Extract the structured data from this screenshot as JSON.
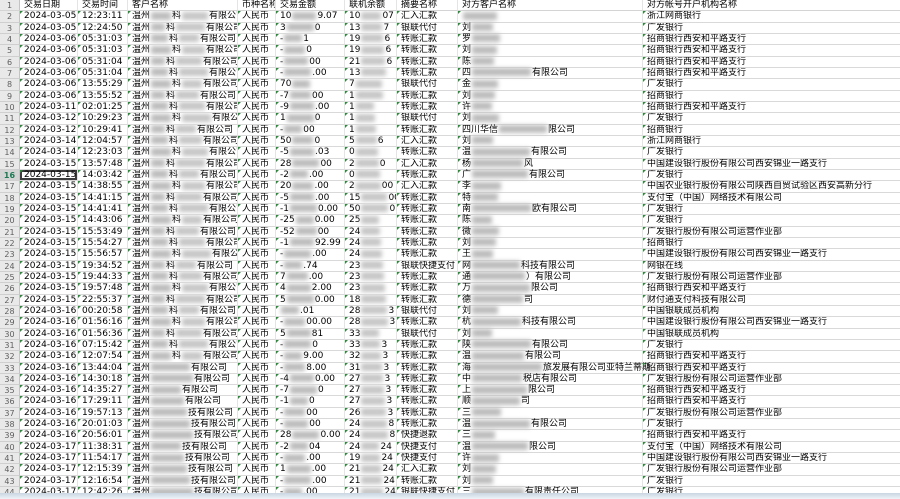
{
  "sheet": {
    "headers": [
      "交易日期",
      "交易时间",
      "客户名称",
      "币种名称",
      "交易金额",
      "联机余额",
      "摘要名称",
      "对方客户名称",
      "对方帐号开户机构名称"
    ],
    "customer_prefix": "温州",
    "currency": "人民币",
    "selected_cell": "A16",
    "rows": [
      {
        "n": 2,
        "d": "2024-03-05",
        "t": "12:23:11",
        "cm": "科",
        "cs": "有限公司",
        "al": "10",
        "ar": "9.07",
        "ol": "10",
        "or": "07",
        "sm": "汇入汇款",
        "cl": "",
        "cr": "",
        "bk": "浙江网商银行"
      },
      {
        "n": 3,
        "d": "2024-03-05",
        "t": "12:24:50",
        "cm": "科",
        "cs": "有限公司",
        "al": "3",
        "ar": "0",
        "ol": "13",
        "or": "7",
        "sm": "银联代付",
        "cl": "刘",
        "cr": "",
        "bk": "广发银行"
      },
      {
        "n": 4,
        "d": "2024-03-06",
        "t": "05:31:03",
        "cm": "科",
        "cs": "有限公司",
        "al": "-",
        "ar": "1",
        "ol": "19",
        "or": "6",
        "sm": "转账汇款",
        "cl": "罗",
        "cr": "",
        "bk": "招商银行西安和平路支行"
      },
      {
        "n": 5,
        "d": "2024-03-06",
        "t": "05:31:03",
        "cm": "科",
        "cs": "有限公司",
        "al": "-",
        "ar": "0",
        "ol": "19",
        "or": "6",
        "sm": "转账汇款",
        "cl": "刘",
        "cr": "",
        "bk": "招商银行西安和平路支行"
      },
      {
        "n": 6,
        "d": "2024-03-06",
        "t": "05:31:04",
        "cm": "科",
        "cs": "有限公司",
        "al": "-",
        "ar": "00",
        "ol": "21",
        "or": "6",
        "sm": "转账汇款",
        "cl": "陈",
        "cr": "",
        "bk": "招商银行西安和平路支行"
      },
      {
        "n": 7,
        "d": "2024-03-06",
        "t": "05:31:04",
        "cm": "科",
        "cs": "有限公司",
        "al": "-",
        "ar": ".00",
        "ol": "13",
        "or": "",
        "sm": "转账汇款",
        "cl": "四",
        "cr": "有限公司",
        "bk": "招商银行西安和平路支行"
      },
      {
        "n": 8,
        "d": "2024-03-06",
        "t": "13:55:29",
        "cm": "科",
        "cs": "有限公司",
        "al": "70",
        "ar": "",
        "ol": "7",
        "or": "",
        "sm": "银联代付",
        "cl": "金",
        "cr": "",
        "bk": "广发银行"
      },
      {
        "n": 9,
        "d": "2024-03-06",
        "t": "13:55:52",
        "cm": "科",
        "cs": "有限公司",
        "al": "-7",
        "ar": "00",
        "ol": "1",
        "or": "",
        "sm": "转账汇款",
        "cl": "刘",
        "cr": "",
        "bk": "招商银行"
      },
      {
        "n": 10,
        "d": "2024-03-11",
        "t": "02:01:25",
        "cm": "科",
        "cs": "有限公司",
        "al": "-9",
        "ar": ".00",
        "ol": "1",
        "or": "",
        "sm": "转账汇款",
        "cl": "许",
        "cr": "",
        "bk": "招商银行西安和平路支行"
      },
      {
        "n": 11,
        "d": "2024-03-12",
        "t": "10:29:23",
        "cm": "科",
        "cs": "有限公司",
        "al": "1",
        "ar": "0",
        "ol": "1",
        "or": "",
        "sm": "银联代付",
        "cl": "刘",
        "cr": "",
        "bk": "广发银行"
      },
      {
        "n": 12,
        "d": "2024-03-12",
        "t": "10:29:41",
        "cm": "科",
        "cs": "有限公司",
        "al": "-",
        "ar": "00",
        "ol": "1",
        "or": "",
        "sm": "转账汇款",
        "cl": "四川华信",
        "cr": "限公司",
        "bk": "招商银行"
      },
      {
        "n": 13,
        "d": "2024-03-14",
        "t": "12:04:57",
        "cm": "科",
        "cs": "有限公司",
        "al": "50",
        "ar": "0",
        "ol": "5",
        "or": "6",
        "sm": "汇入汇款",
        "cl": "刘",
        "cr": "",
        "bk": "浙江网商银行"
      },
      {
        "n": 14,
        "d": "2024-03-14",
        "t": "12:23:03",
        "cm": "科",
        "cs": "有限公司",
        "al": "-5",
        "ar": ".03",
        "ol": "0",
        "or": "",
        "sm": "转账汇款",
        "cl": "温",
        "cr": "有限公司",
        "bk": "广发银行"
      },
      {
        "n": 15,
        "d": "2024-03-15",
        "t": "13:57:48",
        "cm": "科",
        "cs": "有限公司",
        "al": "28",
        "ar": "00",
        "ol": "2",
        "or": "0",
        "sm": "汇入汇款",
        "cl": "杨",
        "cr": "风",
        "bk": "中国建设银行股份有限公司西安锦业一路支行"
      },
      {
        "n": 16,
        "sel": true,
        "d": "2024-03-15",
        "t": "14:03:42",
        "cm": "科",
        "cs": "有限公司",
        "al": "-2",
        "ar": ".00",
        "ol": "0",
        "or": "",
        "sm": "转账汇款",
        "cl": "广",
        "cr": "有限公司",
        "bk": "广发银行"
      },
      {
        "n": 17,
        "d": "2024-03-15",
        "t": "14:38:55",
        "cm": "科",
        "cs": "有限公司",
        "al": "20",
        "ar": ".00",
        "ol": "2",
        "or": "00",
        "sm": "汇入汇款",
        "cl": "李",
        "cr": "",
        "bk": "中国农业银行股份有限公司陕西自贸试验区西安高新分行"
      },
      {
        "n": 18,
        "d": "2024-03-15",
        "t": "14:41:15",
        "cm": "科",
        "cs": "有限公司",
        "al": "-5",
        "ar": ".00",
        "ol": "15",
        "or": "00",
        "sm": "转账汇款",
        "cl": "特",
        "cr": "",
        "bk": "支付宝（中国）网络技术有限公司"
      },
      {
        "n": 19,
        "d": "2024-03-15",
        "t": "14:41:41",
        "cm": "科",
        "cs": "有限公司",
        "al": "-1",
        "ar": "0.00",
        "ol": "50",
        "or": "0",
        "sm": "转账汇款",
        "cl": "南",
        "cr": "欧有限公司",
        "bk": "广发银行"
      },
      {
        "n": 20,
        "d": "2024-03-15",
        "t": "14:43:06",
        "cm": "科",
        "cs": "有限公司",
        "al": "-25",
        "ar": "0.00",
        "ol": "25",
        "or": "",
        "sm": "转账汇款",
        "cl": "陈",
        "cr": "",
        "bk": "广发银行"
      },
      {
        "n": 21,
        "d": "2024-03-15",
        "t": "15:53:49",
        "cm": "科",
        "cs": "有限公司",
        "al": "-52",
        "ar": "00",
        "ol": "24",
        "or": "",
        "sm": "转账汇款",
        "cl": "微",
        "cr": "",
        "bk": "广发银行股份有限公司运营作业部"
      },
      {
        "n": 22,
        "d": "2024-03-15",
        "t": "15:54:27",
        "cm": "科",
        "cs": "有限公司",
        "al": "-1",
        "ar": "92.99",
        "ol": "24",
        "or": "",
        "sm": "转账汇款",
        "cl": "刘",
        "cr": "",
        "bk": "招商银行"
      },
      {
        "n": 23,
        "d": "2024-03-15",
        "t": "15:56:57",
        "cm": "科",
        "cs": "有限公司",
        "al": "-",
        "ar": ".00",
        "ol": "24",
        "or": "",
        "sm": "转账汇款",
        "cl": "王",
        "cr": "",
        "bk": "中国建设银行股份有限公司西安锦业一路支行"
      },
      {
        "n": 24,
        "d": "2024-03-15",
        "t": "19:34:52",
        "cm": "科",
        "cs": "有限公司",
        "al": "-",
        "ar": ".74",
        "ol": "23",
        "or": "",
        "sm": "银联快捷支付",
        "cl": "网",
        "cr": "科技有限公司",
        "bk": "网银在线"
      },
      {
        "n": 25,
        "d": "2024-03-15",
        "t": "19:44:33",
        "cm": "科",
        "cs": "有限公司",
        "al": "7",
        "ar": ".00",
        "ol": "23",
        "or": "",
        "sm": "转账汇款",
        "cl": "通",
        "cr": "）有限公司",
        "bk": "广发银行股份有限公司运营作业部"
      },
      {
        "n": 26,
        "d": "2024-03-15",
        "t": "19:57:48",
        "cm": "科",
        "cs": "有限公司",
        "al": "4",
        "ar": "2.00",
        "ol": "23",
        "or": "",
        "sm": "转账汇款",
        "cl": "万",
        "cr": "限公司",
        "bk": "招商银行西安和平路支行"
      },
      {
        "n": 27,
        "d": "2024-03-15",
        "t": "22:55:37",
        "cm": "科",
        "cs": "有限公司",
        "al": "5",
        "ar": "0.00",
        "ol": "18",
        "or": "",
        "sm": "转账汇款",
        "cl": "德",
        "cr": "司",
        "bk": "财付通支付科技有限公司"
      },
      {
        "n": 28,
        "d": "2024-03-16",
        "t": "00:20:58",
        "cm": "科",
        "cs": "有限公司",
        "al": "",
        "ar": ".01",
        "ol": "28",
        "or": "3",
        "sm": "银联代付",
        "cl": "刘",
        "cr": "",
        "bk": "中国银联成员机构"
      },
      {
        "n": 29,
        "d": "2024-03-16",
        "t": "01:56:16",
        "cm": "科",
        "cs": "有限公司",
        "al": "-",
        "ar": "00.00",
        "ol": "28",
        "or": "3",
        "sm": "转账汇款",
        "cl": "杭",
        "cr": "科技有限公司",
        "bk": "中国建设银行股份有限公司西安锦业一路支行"
      },
      {
        "n": 30,
        "d": "2024-03-16",
        "t": "01:56:36",
        "cm": "科",
        "cs": "有限公司",
        "al": "5",
        "ar": "81",
        "ol": "33",
        "or": "",
        "sm": "银联代付",
        "cl": "刘",
        "cr": "",
        "bk": "中国银联成员机构"
      },
      {
        "n": 31,
        "d": "2024-03-16",
        "t": "07:15:42",
        "cm": "科",
        "cs": "有限公司",
        "al": "-",
        "ar": "0",
        "ol": "33",
        "or": "3",
        "sm": "转账汇款",
        "cl": "陕",
        "cr": "有限公司",
        "bk": "广发银行"
      },
      {
        "n": 32,
        "d": "2024-03-16",
        "t": "12:07:54",
        "cm": "科",
        "cs": "有限公司",
        "al": "-",
        "ar": "9.00",
        "ol": "32",
        "or": "3",
        "sm": "转账汇款",
        "cl": "温",
        "cr": "有限公司",
        "bk": "招商银行西安和平路支行"
      },
      {
        "n": 33,
        "d": "2024-03-16",
        "t": "13:44:04",
        "cm": "",
        "cs": "有限公司",
        "al": "-",
        "ar": "8.00",
        "ol": "31",
        "or": "3",
        "sm": "转账汇款",
        "cl": "海",
        "cr": "旅发展有限公司亚特兰蒂斯",
        "bk": "招商银行西安和平路支行"
      },
      {
        "n": 34,
        "d": "2024-03-16",
        "t": "14:30:18",
        "cm": "",
        "cs": "有限公司",
        "al": "-4",
        "ar": "0.00",
        "ol": "27",
        "or": "3",
        "sm": "转账汇款",
        "cl": "中",
        "cr": "税店有限公司",
        "bk": "广发银行股份有限公司运营作业部"
      },
      {
        "n": 35,
        "d": "2024-03-16",
        "t": "14:35:27",
        "cm": "",
        "cs": "有限公司",
        "al": "-7",
        "ar": "0",
        "ol": "27",
        "or": "3",
        "sm": "转账汇款",
        "cl": "上",
        "cr": "限公司",
        "bk": "招商银行西安和平路支行"
      },
      {
        "n": 36,
        "d": "2024-03-16",
        "t": "17:29:11",
        "cm": "",
        "cs": "有限公司",
        "al": "-1",
        "ar": "0",
        "ol": "27",
        "or": "3",
        "sm": "转账汇款",
        "cl": "顺",
        "cr": "司",
        "bk": "招商银行西安和平路支行"
      },
      {
        "n": 37,
        "d": "2024-03-16",
        "t": "19:57:13",
        "cm": "",
        "cs": "技有限公司",
        "al": "-",
        "ar": "00",
        "ol": "26",
        "or": "3",
        "sm": "转账汇款",
        "cl": "三",
        "cr": "",
        "bk": "广发银行股份有限公司运营作业部"
      },
      {
        "n": 38,
        "d": "2024-03-16",
        "t": "20:01:03",
        "cm": "",
        "cs": "技有限公司",
        "al": "-",
        "ar": "00",
        "ol": "24",
        "or": "8",
        "sm": "转账汇款",
        "cl": "温",
        "cr": "有限公司",
        "bk": "广发银行"
      },
      {
        "n": 39,
        "d": "2024-03-16",
        "t": "20:56:01",
        "cm": "",
        "cs": "技有限公司",
        "al": "28",
        "ar": "0.00",
        "ol": "24",
        "or": "8",
        "sm": "快捷退款",
        "cl": "三",
        "cr": "",
        "bk": "招商银行西安和平路支行"
      },
      {
        "n": 40,
        "d": "2024-03-17",
        "t": "11:38:31",
        "cm": "",
        "cs": "技有限公司",
        "al": "-2",
        "ar": "04",
        "ol": "24",
        "or": "24",
        "sm": "快捷支付",
        "cl": "温",
        "cr": "限公司",
        "bk": "支付宝（中国）网络技术有限公司"
      },
      {
        "n": 41,
        "d": "2024-03-17",
        "t": "11:54:17",
        "cm": "",
        "cs": "技有限公司",
        "al": "-",
        "ar": ".00",
        "ol": "19",
        "or": "24",
        "sm": "快捷支付",
        "cl": "许",
        "cr": "",
        "bk": "中国建设银行股份有限公司西安锦业一路支行"
      },
      {
        "n": 42,
        "d": "2024-03-17",
        "t": "12:15:39",
        "cm": "",
        "cs": "技有限公司",
        "al": "1",
        "ar": ".00",
        "ol": "21",
        "or": "24",
        "sm": "汇入汇款",
        "cl": "刘",
        "cr": "",
        "bk": "广发银行股份有限公司运营作业部"
      },
      {
        "n": 43,
        "d": "2024-03-17",
        "t": "12:16:54",
        "cm": "",
        "cs": "技有限公司",
        "al": "-",
        "ar": ".00",
        "ol": "21",
        "or": "24",
        "sm": "转账汇款",
        "cl": "刘",
        "cr": "",
        "bk": "广发银行"
      },
      {
        "n": 44,
        "d": "2024-03-17",
        "t": "12:42:26",
        "cm": "",
        "cs": "技有限公司",
        "al": "-",
        "ar": ".00",
        "ol": "21",
        "or": "24",
        "sm": "银联快捷支付",
        "cl": "三",
        "cr": "有限责任公司",
        "bk": "广发银行"
      }
    ]
  },
  "colors": {
    "triangle_green": "#2e8b3d",
    "grid_line": "#d9d9d9",
    "row_header_bg": "#e9e9e9",
    "selection_border": "#3c3c3c",
    "redaction_gray": "#bdbdbd",
    "bottom_edge": "#c9d6e2"
  }
}
